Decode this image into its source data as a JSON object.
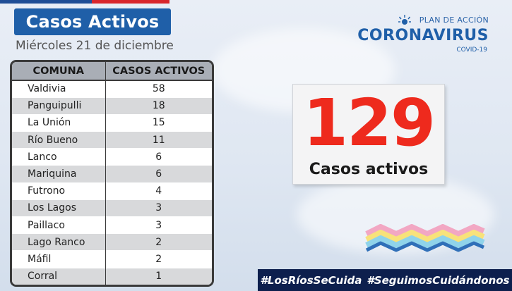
{
  "header": {
    "title": "Casos Activos",
    "date": "Miércoles 21 de diciembre"
  },
  "table": {
    "headers": [
      "COMUNA",
      "CASOS ACTIVOS"
    ],
    "rows": [
      {
        "comuna": "Valdivia",
        "casos": "58"
      },
      {
        "comuna": "Panguipulli",
        "casos": "18"
      },
      {
        "comuna": "La Unión",
        "casos": "15"
      },
      {
        "comuna": "Río Bueno",
        "casos": "11"
      },
      {
        "comuna": "Lanco",
        "casos": "6"
      },
      {
        "comuna": "Mariquina",
        "casos": "6"
      },
      {
        "comuna": "Futrono",
        "casos": "4"
      },
      {
        "comuna": "Los Lagos",
        "casos": "3"
      },
      {
        "comuna": "Paillaco",
        "casos": "3"
      },
      {
        "comuna": "Lago Ranco",
        "casos": "2"
      },
      {
        "comuna": "Máfil",
        "casos": "2"
      },
      {
        "comuna": "Corral",
        "casos": "1"
      }
    ]
  },
  "logo": {
    "plan": "PLAN DE ACCIÓN",
    "name": "CORONAVIRUS",
    "sub": "COVID-19"
  },
  "total": {
    "value": "129",
    "label": "Casos activos"
  },
  "hashtags": [
    "#LosRíosSeCuida",
    "#SeguimosCuidándonos"
  ],
  "colors": {
    "title_bg": "#1f5fa8",
    "total_number": "#ee2a1d",
    "hashtag_bar": "#0d1f4d"
  }
}
